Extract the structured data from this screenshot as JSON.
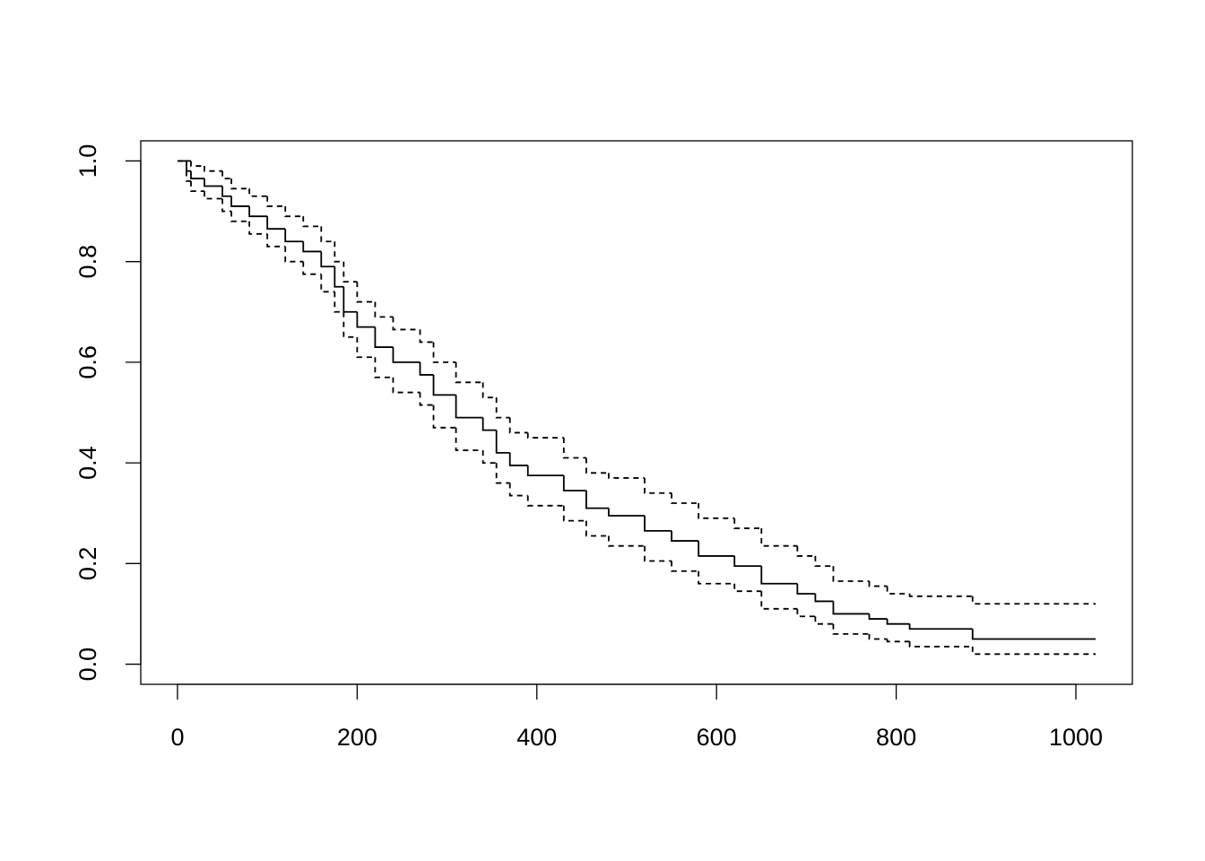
{
  "chart_data": {
    "type": "step",
    "x": [
      0,
      10,
      15,
      30,
      50,
      60,
      80,
      100,
      120,
      140,
      160,
      175,
      185,
      200,
      220,
      240,
      270,
      285,
      310,
      340,
      355,
      370,
      390,
      430,
      455,
      480,
      520,
      550,
      580,
      620,
      650,
      690,
      710,
      730,
      770,
      790,
      815,
      885,
      1022
    ],
    "series": [
      {
        "color": "#000000",
        "dashed": false,
        "values": [
          1,
          0.98,
          0.965,
          0.95,
          0.93,
          0.91,
          0.89,
          0.865,
          0.84,
          0.82,
          0.79,
          0.75,
          0.7,
          0.67,
          0.63,
          0.6,
          0.575,
          0.535,
          0.49,
          0.465,
          0.42,
          0.395,
          0.375,
          0.345,
          0.31,
          0.295,
          0.265,
          0.245,
          0.215,
          0.195,
          0.16,
          0.14,
          0.125,
          0.1,
          0.09,
          0.08,
          0.07,
          0.05,
          0.05
        ]
      },
      {
        "color": "#000000",
        "dashed": true,
        "values": [
          1,
          1,
          0.99,
          0.98,
          0.965,
          0.945,
          0.93,
          0.91,
          0.89,
          0.87,
          0.84,
          0.8,
          0.76,
          0.72,
          0.69,
          0.665,
          0.64,
          0.6,
          0.56,
          0.53,
          0.49,
          0.46,
          0.45,
          0.41,
          0.38,
          0.37,
          0.34,
          0.32,
          0.29,
          0.27,
          0.235,
          0.215,
          0.195,
          0.165,
          0.155,
          0.14,
          0.135,
          0.12,
          0.12
        ]
      },
      {
        "color": "#000000",
        "dashed": true,
        "values": [
          1,
          0.96,
          0.94,
          0.925,
          0.9,
          0.88,
          0.855,
          0.83,
          0.8,
          0.775,
          0.74,
          0.7,
          0.65,
          0.61,
          0.57,
          0.54,
          0.515,
          0.47,
          0.425,
          0.4,
          0.36,
          0.335,
          0.315,
          0.285,
          0.255,
          0.235,
          0.205,
          0.185,
          0.16,
          0.145,
          0.11,
          0.095,
          0.08,
          0.06,
          0.05,
          0.045,
          0.035,
          0.02,
          0.02
        ]
      }
    ],
    "xlim": [
      -40.88,
      1062.88
    ],
    "ylim": [
      -0.04,
      1.04
    ],
    "xticks": [
      0,
      200,
      400,
      600,
      800,
      1000
    ],
    "yticks": [
      {
        "value": 0,
        "label": "0.0"
      },
      0.2,
      0.4,
      0.6,
      0.8,
      {
        "value": 1,
        "label": "1.0"
      }
    ]
  }
}
